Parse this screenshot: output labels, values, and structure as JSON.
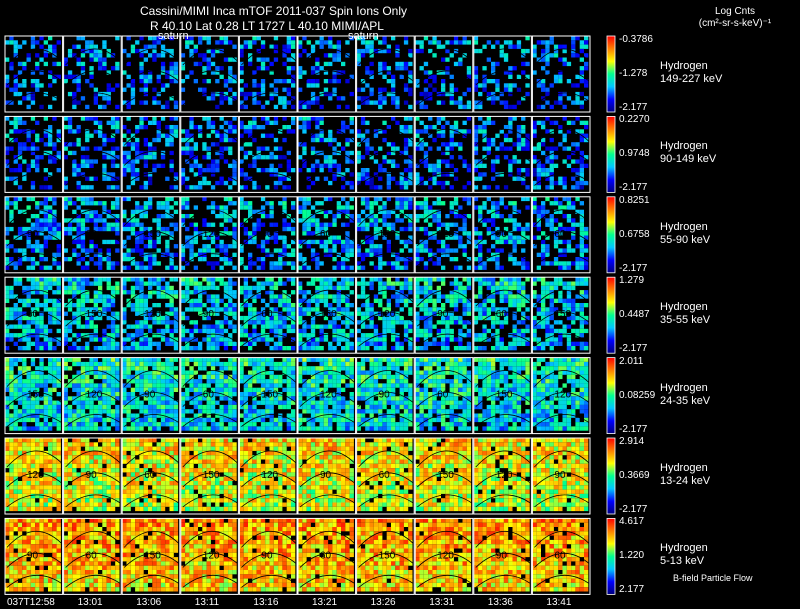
{
  "header": {
    "line1": "Cassini/MIMI Inca mTOF  2011-037   Spin   Ions Only",
    "line2": "R        40.10 Lat 0.28 LT 1727 L        40.10  MIMI/APL",
    "units_line1": "Log Cnts",
    "units_line2": "(cm²-sr-s-keV)⁻¹",
    "saturn_label": "saturn"
  },
  "footnote": "B-field Particle Flow",
  "chart_data": {
    "type": "heatmap",
    "title": "Cassini/MIMI Inca mTOF  2011-037   Spin   Ions Only",
    "x_ticks": [
      "037T12:58",
      "13:01",
      "13:06",
      "13:11",
      "13:16",
      "13:21",
      "13:26",
      "13:31",
      "13:36",
      "13:41"
    ],
    "rows": [
      {
        "species": "Hydrogen",
        "energy": "149-227 keV",
        "cb_max": "-0.3786",
        "cb_mid": "-1.278",
        "cb_min": "-2.177",
        "level": 0.3,
        "density": 0.4
      },
      {
        "species": "Hydrogen",
        "energy": "90-149 keV",
        "cb_max": "0.2270",
        "cb_mid": "0.9748",
        "cb_min": "-2.177",
        "level": 0.3,
        "density": 0.45
      },
      {
        "species": "Hydrogen",
        "energy": "55-90 keV",
        "cb_max": "0.8251",
        "cb_mid": "0.6758",
        "cb_min": "-2.177",
        "level": 0.35,
        "density": 0.55
      },
      {
        "species": "Hydrogen",
        "energy": "35-55 keV",
        "cb_max": "1.279",
        "cb_mid": "0.4487",
        "cb_min": "-2.177",
        "level": 0.4,
        "density": 0.7
      },
      {
        "species": "Hydrogen",
        "energy": "24-35 keV",
        "cb_max": "2.011",
        "cb_mid": "0.08259",
        "cb_min": "-2.177",
        "level": 0.45,
        "density": 0.85
      },
      {
        "species": "Hydrogen",
        "energy": "13-24 keV",
        "cb_max": "2.914",
        "cb_mid": "0.3669",
        "cb_min": "-2.177",
        "level": 0.72,
        "density": 0.95
      },
      {
        "species": "Hydrogen",
        "energy": "5-13 keV",
        "cb_max": "4.617",
        "cb_mid": "1.220",
        "cb_min": "2.177",
        "level": 0.8,
        "density": 0.95
      }
    ],
    "contour_labels": [
      "150",
      "120",
      "90",
      "60"
    ],
    "colorscale": [
      "#000080",
      "#0000ff",
      "#00c8ff",
      "#00ff90",
      "#ffff00",
      "#ff8000",
      "#ff0000"
    ]
  }
}
